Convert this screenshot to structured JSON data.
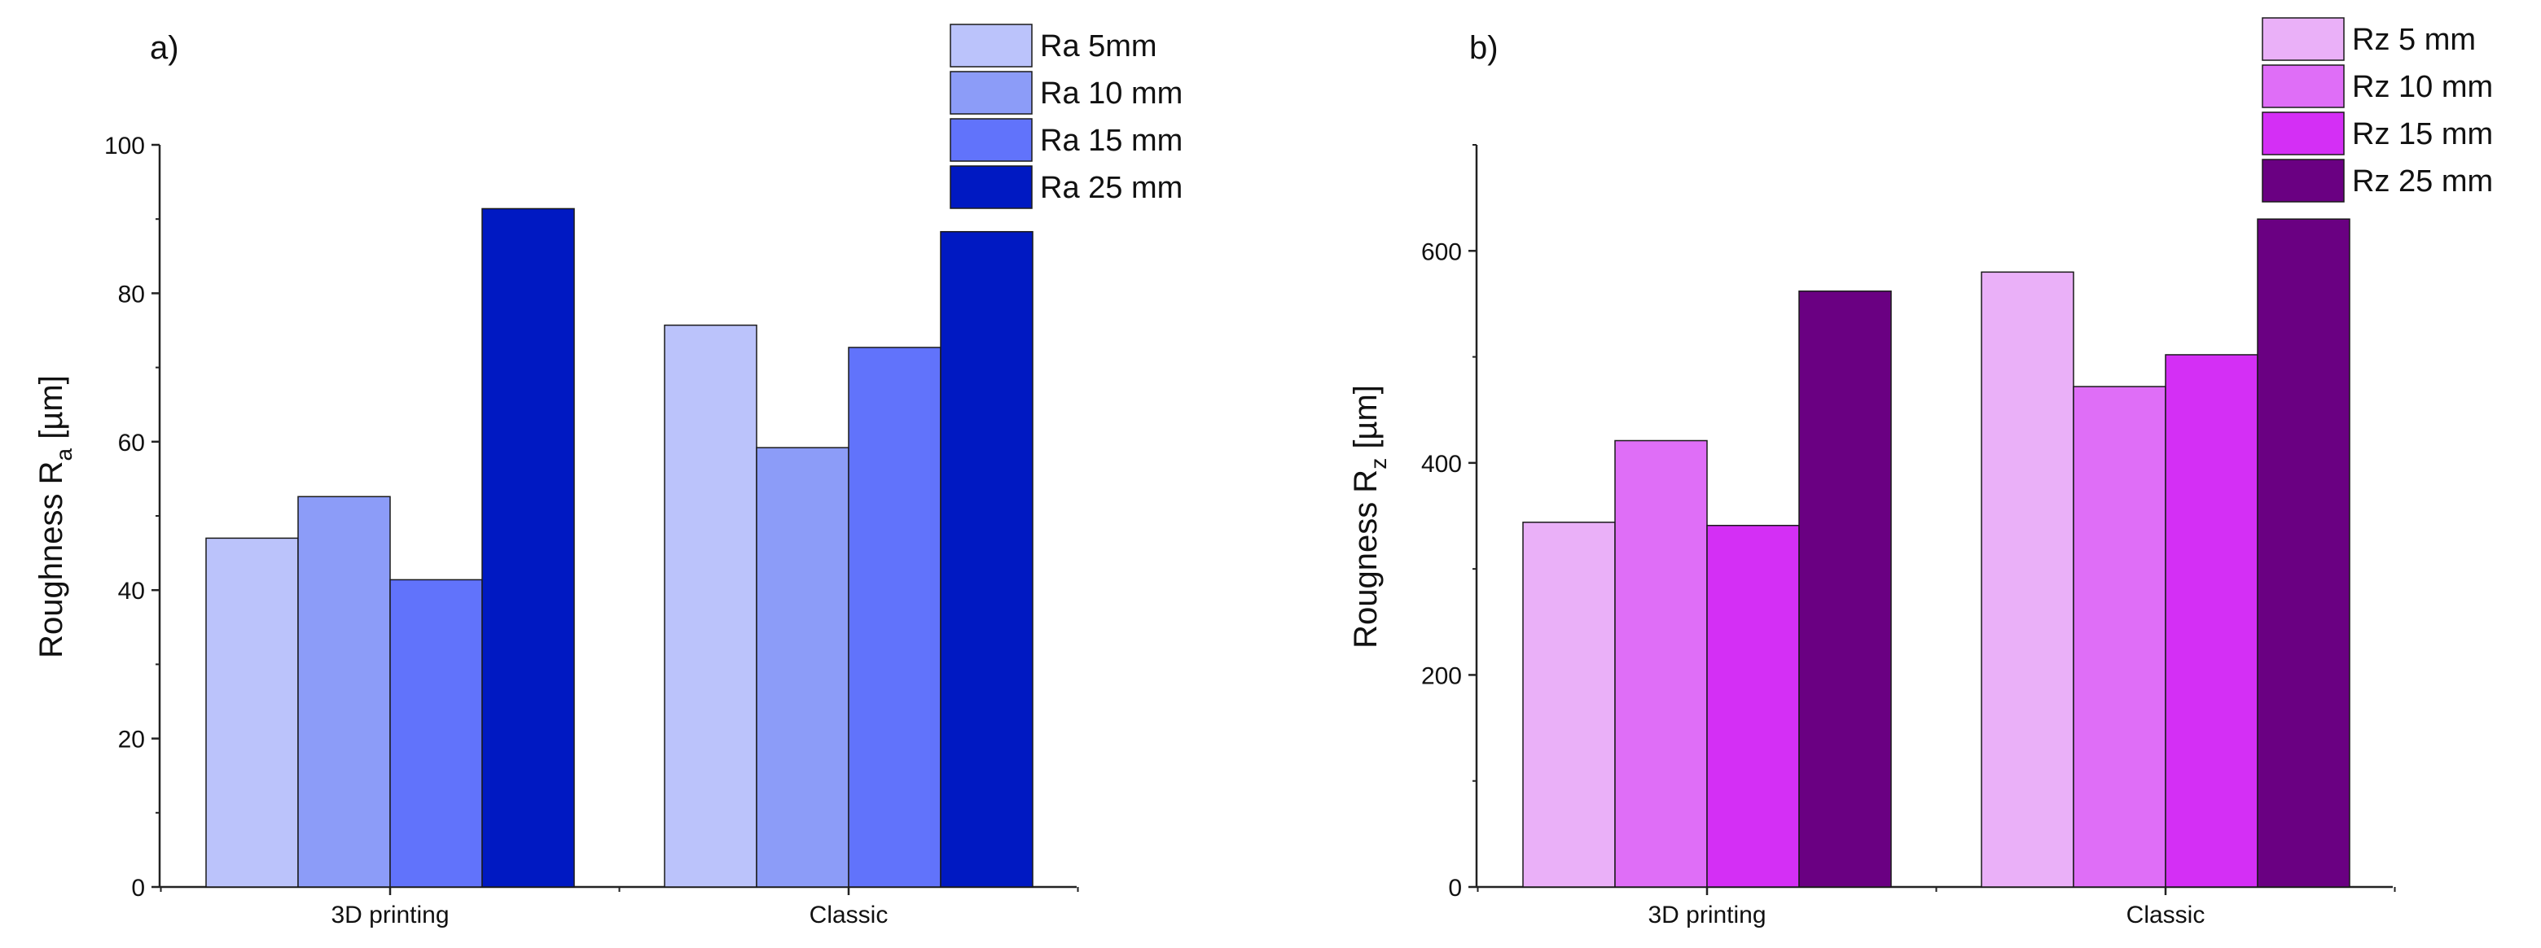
{
  "chart_data": [
    {
      "type": "bar",
      "panel_label": "a)",
      "title": "",
      "categories": [
        "3D printing",
        "Classic"
      ],
      "series": [
        {
          "name": "Ra 5mm",
          "color": "#BBC3FB",
          "values": [
            47.0,
            75.7
          ]
        },
        {
          "name": "Ra 10 mm",
          "color": "#8C9CF8",
          "values": [
            52.6,
            59.2
          ]
        },
        {
          "name": "Ra 15 mm",
          "color": "#6173FB",
          "values": [
            41.4,
            72.7
          ]
        },
        {
          "name": "Ra 25 mm",
          "color": "#0019C2",
          "values": [
            91.4,
            88.3
          ]
        }
      ],
      "xlabel": "",
      "ylabel": {
        "text": "Roughness R",
        "sub": "a",
        "unit": " [µm]"
      },
      "ylim": [
        0,
        100
      ],
      "yticks": [
        0,
        20,
        40,
        60,
        80,
        100
      ],
      "ytick_labels": [
        "0",
        "20",
        "40",
        "60",
        "80",
        "100"
      ],
      "grid": false,
      "legend_position": "top-right"
    },
    {
      "type": "bar",
      "panel_label": "b)",
      "title": "",
      "categories": [
        "3D printing",
        "Classic"
      ],
      "series": [
        {
          "name": "Rz 5 mm",
          "color": "#EAB0F8",
          "values": [
            344,
            580
          ]
        },
        {
          "name": "Rz 10 mm",
          "color": "#DF6EF7",
          "values": [
            421,
            472
          ]
        },
        {
          "name": "Rz 15 mm",
          "color": "#D42FF5",
          "values": [
            341,
            502
          ]
        },
        {
          "name": "Rz 25 mm",
          "color": "#6A0082",
          "values": [
            562,
            630
          ]
        }
      ],
      "xlabel": "",
      "ylabel": {
        "text": "Rougness R",
        "sub": "z",
        "unit": " [µm]"
      },
      "ylim": [
        0,
        700
      ],
      "yticks": [
        0,
        200,
        400,
        600
      ],
      "ytick_labels": [
        "0",
        "200",
        "400",
        "600"
      ],
      "grid": false,
      "legend_position": "top-right"
    }
  ]
}
